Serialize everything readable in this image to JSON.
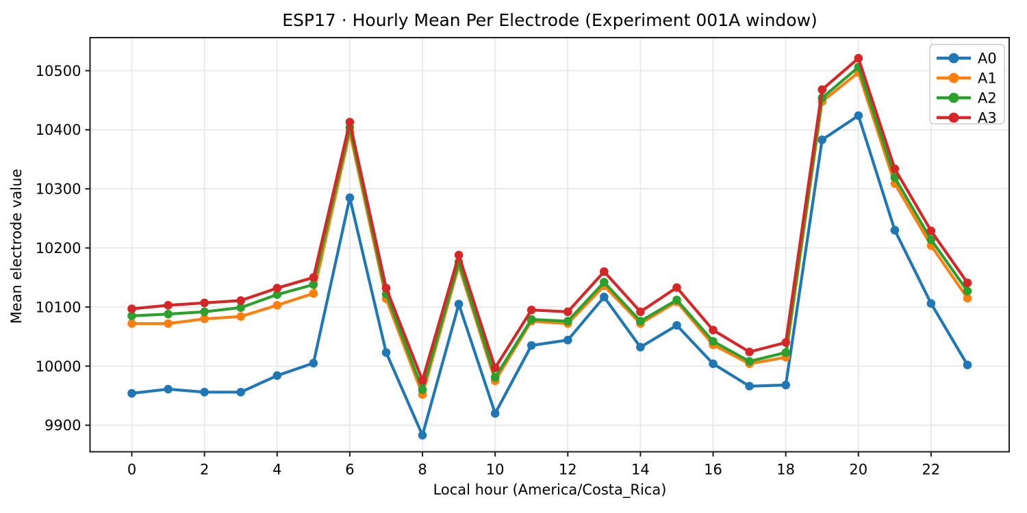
{
  "chart_data": {
    "type": "line",
    "title": "ESP17 · Hourly Mean Per Electrode (Experiment 001A window)",
    "xlabel": "Local hour (America/Costa_Rica)",
    "ylabel": "Mean electrode value",
    "x": [
      0,
      1,
      2,
      3,
      4,
      5,
      6,
      7,
      8,
      9,
      10,
      11,
      12,
      13,
      14,
      15,
      16,
      17,
      18,
      19,
      20,
      21,
      22,
      23
    ],
    "series": [
      {
        "name": "A0",
        "color": "#1f77b4",
        "values": [
          9954,
          9961,
          9956,
          9956,
          9984,
          10005,
          10285,
          10023,
          9883,
          10105,
          9920,
          10035,
          10044,
          10117,
          10032,
          10069,
          10004,
          9966,
          9968,
          10383,
          10424,
          10230,
          10106,
          10002
        ]
      },
      {
        "name": "A1",
        "color": "#ff7f0e",
        "values": [
          10072,
          10072,
          10080,
          10084,
          10103,
          10123,
          10396,
          10114,
          9952,
          10170,
          9975,
          10076,
          10072,
          10136,
          10072,
          10109,
          10036,
          10004,
          10015,
          10448,
          10497,
          10309,
          10204,
          10115
        ]
      },
      {
        "name": "A2",
        "color": "#2ca02c",
        "values": [
          10085,
          10088,
          10092,
          10099,
          10121,
          10138,
          10404,
          10122,
          9960,
          10176,
          9981,
          10079,
          10076,
          10142,
          10076,
          10112,
          10042,
          10008,
          10023,
          10454,
          10506,
          10319,
          10214,
          10127
        ]
      },
      {
        "name": "A3",
        "color": "#d62728",
        "values": [
          10097,
          10103,
          10107,
          10111,
          10132,
          10150,
          10413,
          10132,
          9976,
          10188,
          9997,
          10095,
          10092,
          10160,
          10092,
          10133,
          10061,
          10024,
          10040,
          10468,
          10521,
          10334,
          10229,
          10141
        ]
      }
    ],
    "xticks": [
      0,
      2,
      4,
      6,
      8,
      10,
      12,
      14,
      16,
      18,
      20,
      22
    ],
    "yticks": [
      9900,
      10000,
      10100,
      10200,
      10300,
      10400,
      10500
    ],
    "xlim": [
      -1.15,
      24.15
    ],
    "ylim": [
      9855,
      10556
    ],
    "grid": true,
    "legend": {
      "position": "upper right",
      "entries": [
        "A0",
        "A1",
        "A2",
        "A3"
      ]
    },
    "style": {
      "background": "#ffffff",
      "grid_color": "#e8e8e8",
      "spine_color": "#1c1c1c",
      "text_color": "#000000",
      "legend_border": "#cccccc"
    }
  }
}
